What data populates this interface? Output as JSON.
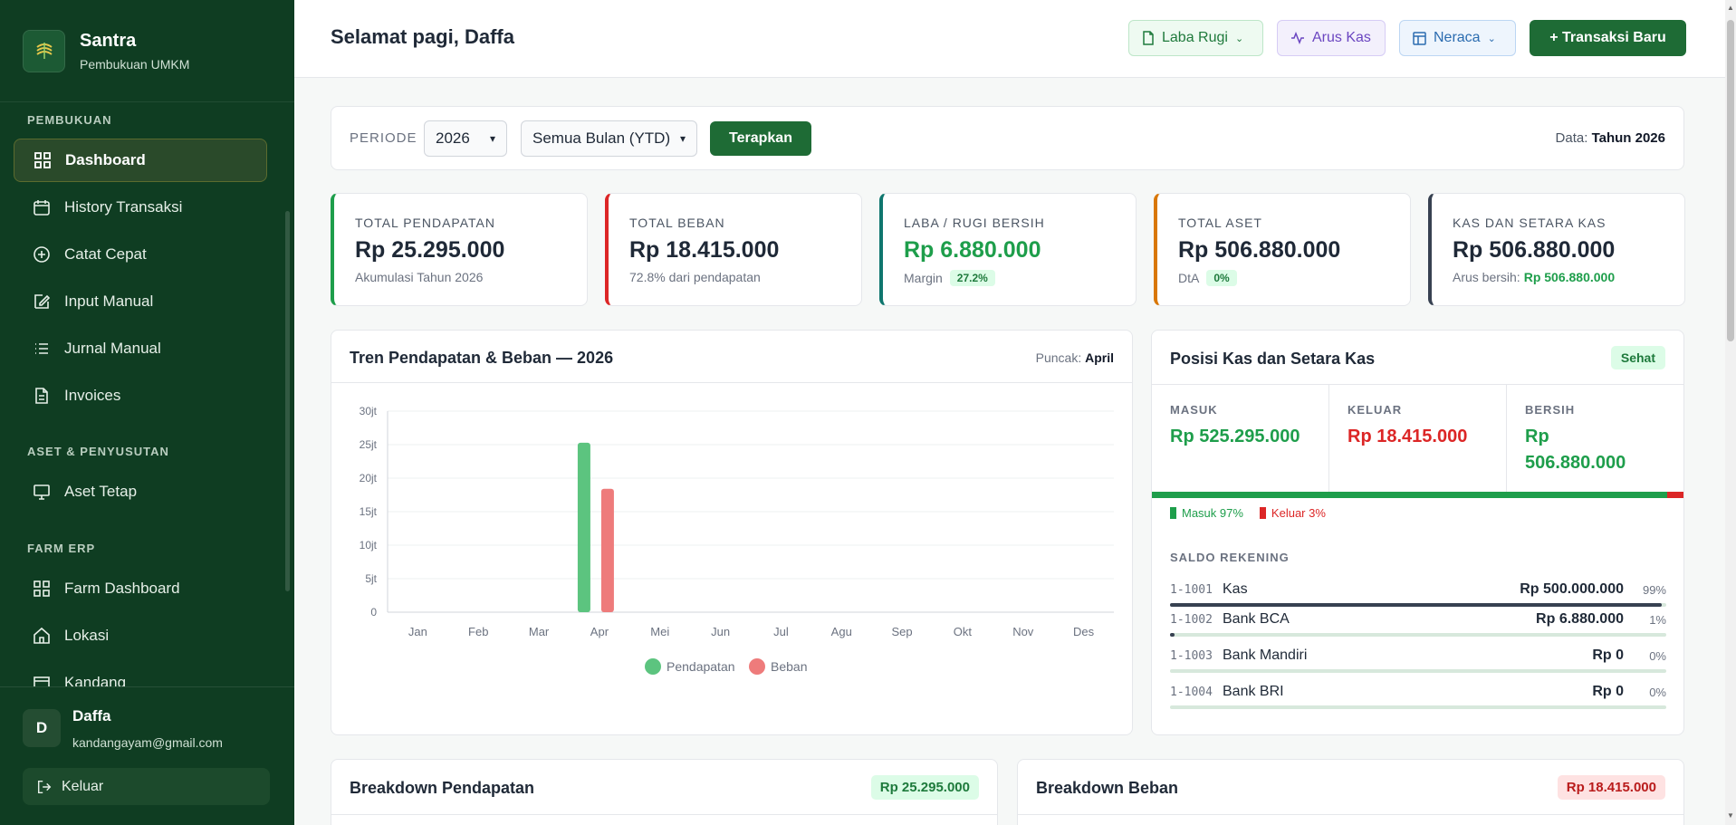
{
  "app": {
    "name": "Santra",
    "subtitle": "Pembukuan UMKM"
  },
  "sidebar": {
    "sections": [
      {
        "label": "PEMBUKUAN"
      },
      {
        "label": "ASET & PENYUSUTAN"
      },
      {
        "label": "FARM ERP"
      }
    ],
    "items": [
      {
        "label": "Dashboard",
        "icon": "grid-icon",
        "active": true
      },
      {
        "label": "History Transaksi",
        "icon": "calendar-icon"
      },
      {
        "label": "Catat Cepat",
        "icon": "plus-circle-icon"
      },
      {
        "label": "Input Manual",
        "icon": "edit-icon"
      },
      {
        "label": "Jurnal Manual",
        "icon": "list-icon"
      },
      {
        "label": "Invoices",
        "icon": "file-icon"
      },
      {
        "label": "Aset Tetap",
        "icon": "monitor-icon"
      },
      {
        "label": "Farm Dashboard",
        "icon": "grid-icon"
      },
      {
        "label": "Lokasi",
        "icon": "home-icon"
      },
      {
        "label": "Kandang",
        "icon": "building-icon"
      }
    ],
    "user": {
      "initial": "D",
      "name": "Daffa",
      "email": "kandangayam@gmail.com"
    },
    "logout_label": "Keluar"
  },
  "header": {
    "greeting": "Selamat pagi, Daffa",
    "buttons": {
      "laba_rugi": "Laba Rugi",
      "arus_kas": "Arus Kas",
      "neraca": "Neraca",
      "new_tx": "+ Transaksi Baru"
    }
  },
  "filter": {
    "label": "PERIODE",
    "year": "2026",
    "month": "Semua Bulan (YTD)",
    "apply": "Terapkan",
    "data_prefix": "Data:",
    "data_value": "Tahun 2026"
  },
  "kpis": [
    {
      "label": "TOTAL PENDAPATAN",
      "value": "Rp 25.295.000",
      "sub": "Akumulasi Tahun 2026",
      "color": "#1e9e4b"
    },
    {
      "label": "TOTAL BEBAN",
      "value": "Rp 18.415.000",
      "sub": "72.8% dari pendapatan",
      "color": "#dc2626"
    },
    {
      "label": "LABA / RUGI BERSIH",
      "value": "Rp 6.880.000",
      "sub": "Margin",
      "badge": "27.2%",
      "color": "#0f766e"
    },
    {
      "label": "TOTAL ASET",
      "value": "Rp 506.880.000",
      "sub": "DtA",
      "badge": "0%",
      "color": "#d97706"
    },
    {
      "label": "KAS DAN SETARA KAS",
      "value": "Rp 506.880.000",
      "sub": "Arus bersih:",
      "sub_value": "Rp 506.880.000",
      "color": "#374151"
    }
  ],
  "trend": {
    "title": "Tren Pendapatan & Beban — 2026",
    "peak_prefix": "Puncak:",
    "peak_value": "April"
  },
  "chart_data": {
    "type": "bar",
    "categories": [
      "Jan",
      "Feb",
      "Mar",
      "Apr",
      "Mei",
      "Jun",
      "Jul",
      "Agu",
      "Sep",
      "Okt",
      "Nov",
      "Des"
    ],
    "series": [
      {
        "name": "Pendapatan",
        "color": "#5cc47f",
        "values": [
          0,
          0,
          0,
          25295000,
          0,
          0,
          0,
          0,
          0,
          0,
          0,
          0
        ]
      },
      {
        "name": "Beban",
        "color": "#ee7b7b",
        "values": [
          0,
          0,
          0,
          18415000,
          0,
          0,
          0,
          0,
          0,
          0,
          0,
          0
        ]
      }
    ],
    "ylim": [
      0,
      30000000
    ],
    "yticks": [
      0,
      5000000,
      10000000,
      15000000,
      20000000,
      25000000,
      30000000
    ],
    "ytick_labels": [
      "0",
      "5jt",
      "10jt",
      "15jt",
      "20jt",
      "25jt",
      "30jt"
    ],
    "grid": true,
    "legend": "bottom"
  },
  "cash": {
    "title": "Posisi Kas dan Setara Kas",
    "status": "Sehat",
    "masuk_label": "MASUK",
    "masuk_value": "Rp 525.295.000",
    "keluar_label": "KELUAR",
    "keluar_value": "Rp 18.415.000",
    "bersih_label": "BERSIH",
    "bersih_value": "Rp 506.880.000",
    "masuk_pct": 97,
    "legend_masuk": "Masuk 97%",
    "legend_keluar": "Keluar 3%",
    "saldo_label": "SALDO REKENING",
    "accounts": [
      {
        "code": "1-1001",
        "name": "Kas",
        "amount": "Rp 500.000.000",
        "pct": "99%",
        "fill": 99
      },
      {
        "code": "1-1002",
        "name": "Bank BCA",
        "amount": "Rp 6.880.000",
        "pct": "1%",
        "fill": 1
      },
      {
        "code": "1-1003",
        "name": "Bank Mandiri",
        "amount": "Rp 0",
        "pct": "0%",
        "fill": 0
      },
      {
        "code": "1-1004",
        "name": "Bank BRI",
        "amount": "Rp 0",
        "pct": "0%",
        "fill": 0
      }
    ]
  },
  "breakdown": {
    "pendapatan_title": "Breakdown Pendapatan",
    "pendapatan_total": "Rp 25.295.000",
    "beban_title": "Breakdown Beban",
    "beban_total": "Rp 18.415.000"
  }
}
